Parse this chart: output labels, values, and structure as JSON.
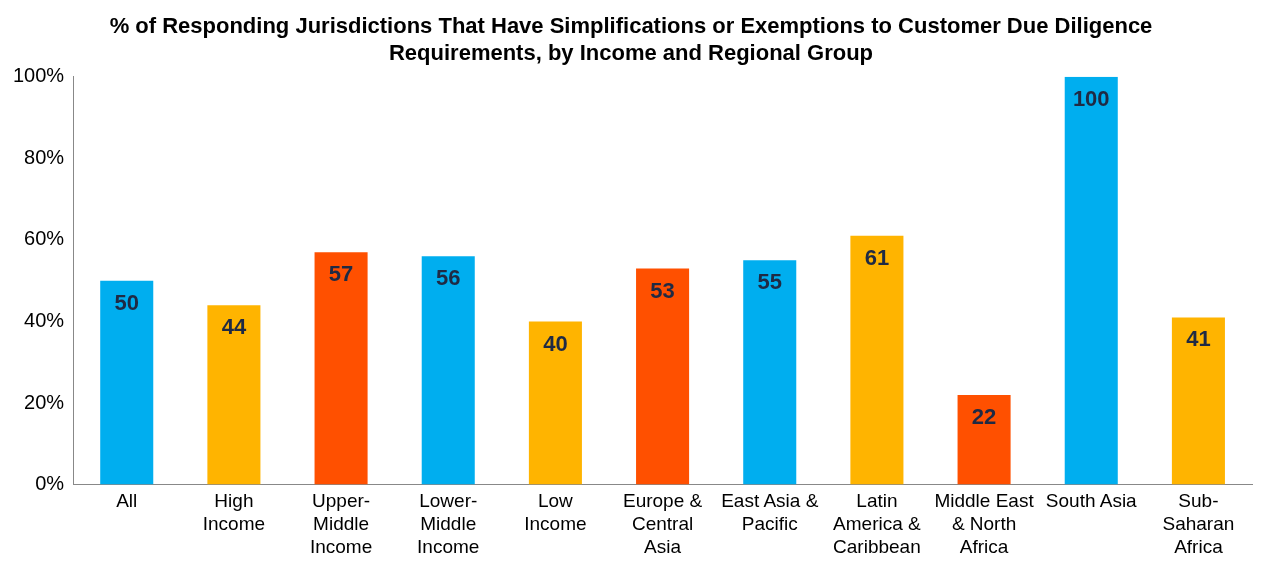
{
  "chart_data": {
    "type": "bar",
    "title": "% of Responding Jurisdictions That Have Simplifications or Exemptions to Customer Due Diligence Requirements, by Income and Regional Group",
    "categories": [
      "All",
      "High Income",
      "Upper-Middle Income",
      "Lower-Middle Income",
      "Low Income",
      "Europe & Central Asia",
      "East Asia & Pacific",
      "Latin America & Caribbean",
      "Middle East & North Africa",
      "South Asia",
      "Sub-Saharan Africa"
    ],
    "values": [
      50,
      44,
      57,
      56,
      40,
      53,
      55,
      61,
      22,
      100,
      41
    ],
    "colors": [
      "#00aeef",
      "#ffb400",
      "#ff5000",
      "#00aeef",
      "#ffb400",
      "#ff5000",
      "#00aeef",
      "#ffb400",
      "#ff5000",
      "#00aeef",
      "#ffb400"
    ],
    "ylim": [
      0,
      100
    ],
    "yticks": [
      {
        "value": 0,
        "label": "0%"
      },
      {
        "value": 20,
        "label": "20%"
      },
      {
        "value": 40,
        "label": "40%"
      },
      {
        "value": 60,
        "label": "60%"
      },
      {
        "value": 80,
        "label": "80%"
      },
      {
        "value": 100,
        "label": "100%"
      }
    ],
    "grid": false,
    "legend": false,
    "data_labels": true
  }
}
